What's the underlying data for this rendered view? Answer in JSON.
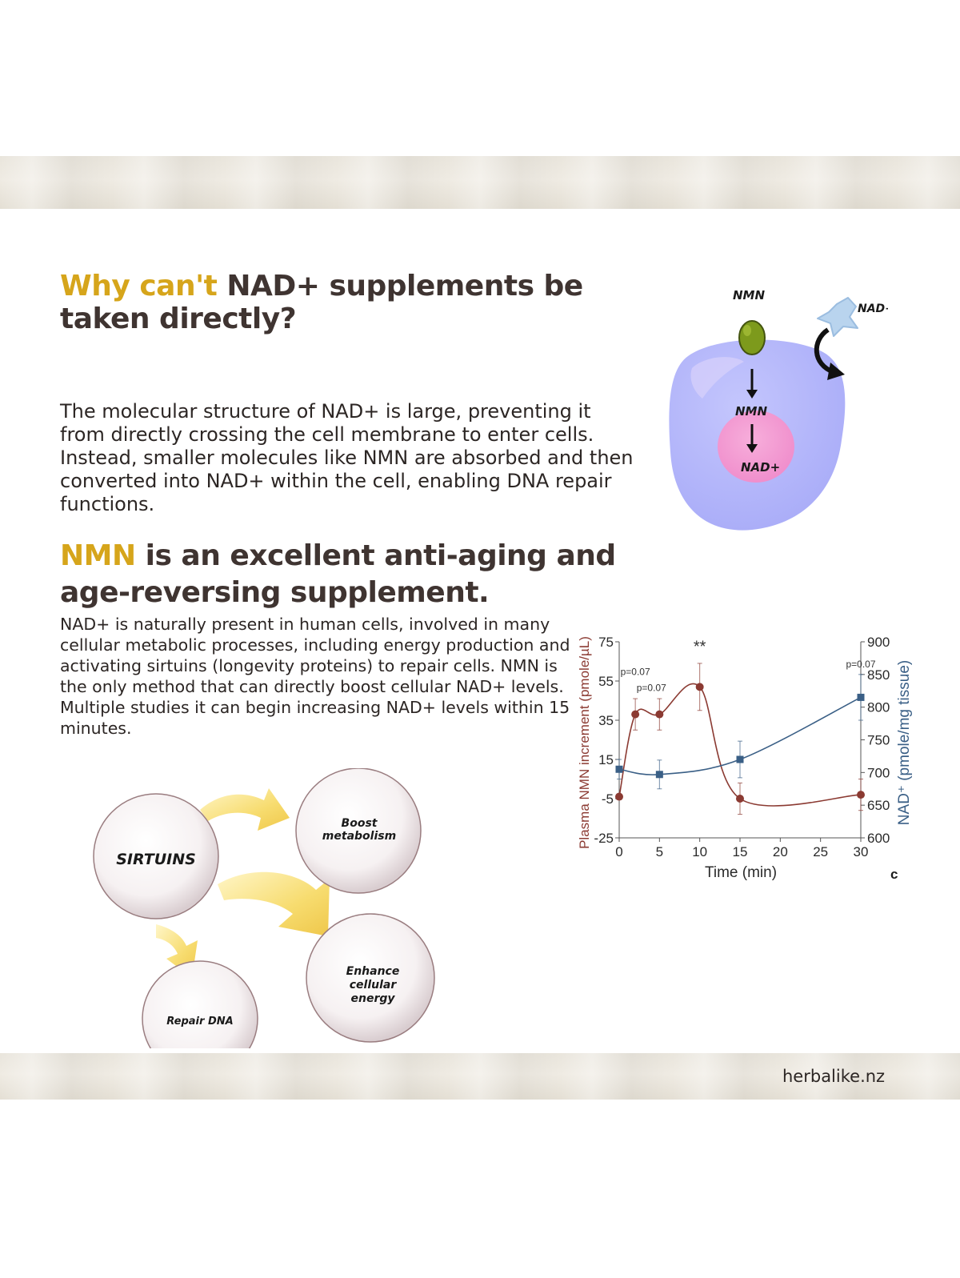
{
  "headings": {
    "h1_accent": "Why can't",
    "h1_rest": " NAD+ supplements be taken directly?",
    "h2_accent": "NMN",
    "h2_rest": " is an excellent anti-aging and age-reversing supplement."
  },
  "paragraphs": {
    "p1": "The molecular structure of NAD+ is large, preventing it from directly crossing the cell membrane to enter cells. Instead, smaller molecules like NMN are absorbed and then converted into NAD+ within the cell, enabling DNA repair functions.",
    "p2": "NAD+ is naturally present in human cells, involved in many cellular metabolic processes, including energy production and activating sirtuins (longevity proteins) to repair cells. NMN is the only method that can directly boost cellular NAD+ levels. Multiple studies it can begin increasing NAD+ levels within 15 minutes."
  },
  "cell_diagram": {
    "outside_nmn": "NMN",
    "outside_nad": "NAD+",
    "inside_nmn": "NMN",
    "inside_nad": "NAD+"
  },
  "sirtuins_diagram": {
    "center": "SIRTUINS",
    "boost_line1": "Boost",
    "boost_line2": "metabolism",
    "enhance_line1": "Enhance",
    "enhance_line2": "cellular",
    "enhance_line3": "energy",
    "repair": "Repair DNA"
  },
  "chart_data": {
    "type": "line",
    "xlabel": "Time (min)",
    "ylabel_left": "Plasma NMN increment (pmole/µL)",
    "ylabel_right": "NAD⁺ (pmole/mg tissue)",
    "panel_label": "c",
    "x_ticks": [
      0,
      5,
      10,
      15,
      20,
      25,
      30
    ],
    "y_left_ticks": [
      75,
      55,
      35,
      15,
      -5,
      -25
    ],
    "y_right_ticks": [
      900,
      850,
      800,
      750,
      700,
      650,
      600
    ],
    "xlim": [
      0,
      30
    ],
    "ylim_left": [
      -25,
      75
    ],
    "ylim_right": [
      600,
      900
    ],
    "series": [
      {
        "axis": "left",
        "color": "#8b3a32",
        "marker": "circle",
        "x": [
          0,
          2,
          5,
          10,
          15,
          30
        ],
        "y": [
          -4,
          38,
          38,
          52,
          -5,
          -3
        ],
        "err": [
          0,
          8,
          8,
          12,
          8,
          8
        ]
      },
      {
        "axis": "right",
        "color": "#3a5f86",
        "marker": "square",
        "x": [
          0,
          5,
          15,
          30
        ],
        "y": [
          705,
          697,
          720,
          815
        ],
        "err": [
          15,
          22,
          28,
          35
        ]
      }
    ],
    "annotations": [
      {
        "text": "p=0.07",
        "x": 2,
        "y": 58
      },
      {
        "text": "p=0.07",
        "x": 4,
        "y": 50
      },
      {
        "text": "**",
        "x": 10,
        "y": 70
      },
      {
        "text": "p=0.07",
        "x": 30,
        "y": 62
      }
    ]
  },
  "footer": {
    "url": "herbalike.nz"
  },
  "colors": {
    "accent": "#d6a51b",
    "heading": "#3f3431",
    "cell_body": "#b3b6fb",
    "nucleus": "#f39ad0",
    "arrow_yellow": "#f7dc6f"
  }
}
